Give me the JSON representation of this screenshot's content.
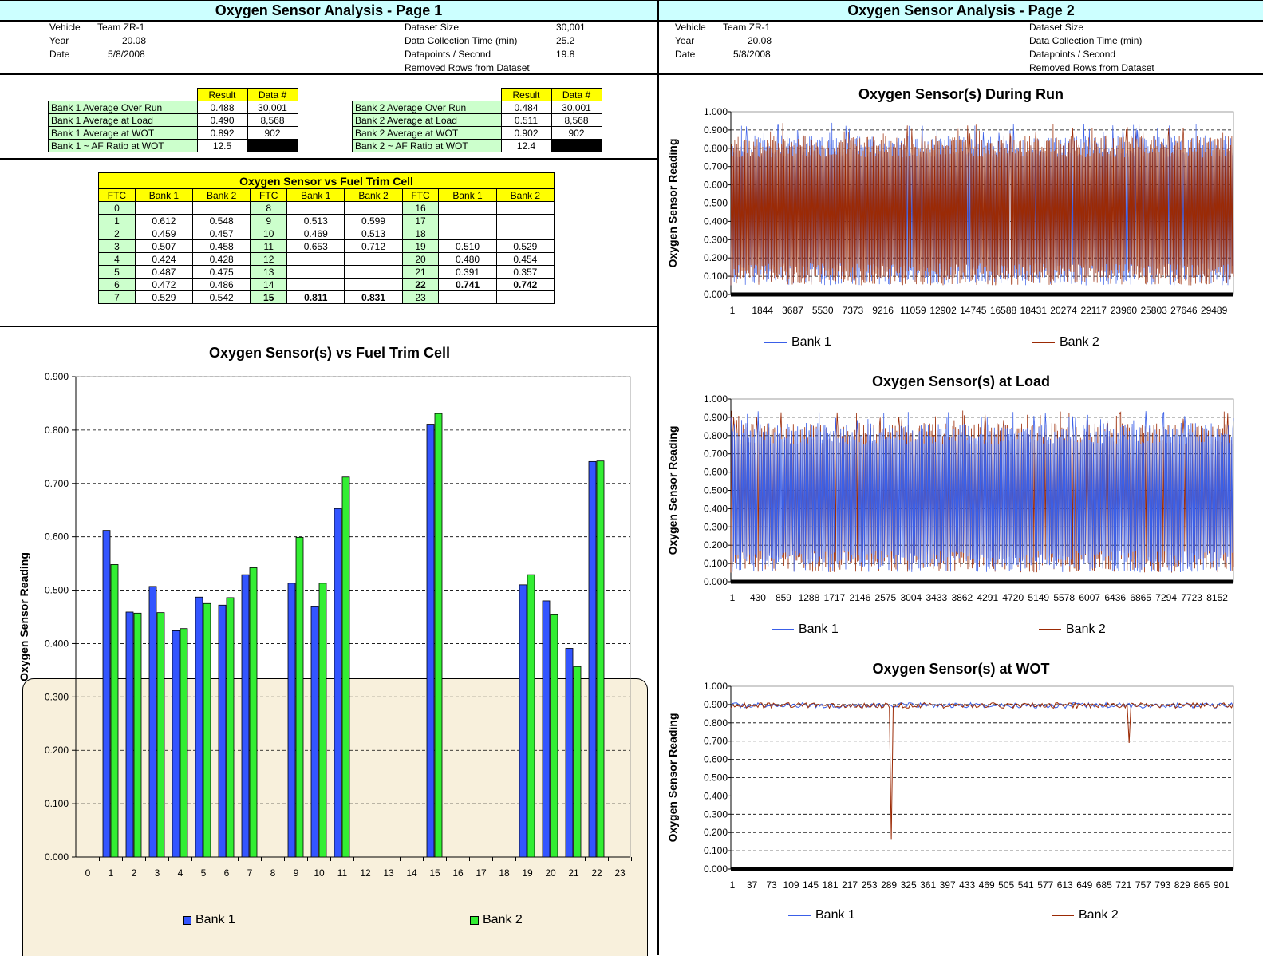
{
  "page1": {
    "title": "Oxygen Sensor Analysis - Page 1",
    "info_left": [
      {
        "label": "Vehicle",
        "value": "Team ZR-1"
      },
      {
        "label": "Year",
        "value": "20.08"
      },
      {
        "label": "Date",
        "value": "5/8/2008"
      }
    ],
    "info_right": [
      {
        "label": "Dataset Size",
        "value": "30,001"
      },
      {
        "label": "Data Collection Time (min)",
        "value": "25.2"
      },
      {
        "label": "Datapoints / Second",
        "value": "19.8"
      },
      {
        "label": "Removed Rows from Dataset",
        "value": ""
      }
    ],
    "summary_headers": [
      "Result",
      "Data #"
    ],
    "bank1_summary": [
      {
        "label": "Bank 1 Average Over Run",
        "result": "0.488",
        "data": "30,001"
      },
      {
        "label": "Bank 1 Average at Load",
        "result": "0.490",
        "data": "8,568"
      },
      {
        "label": "Bank 1 Average at WOT",
        "result": "0.892",
        "data": "902"
      },
      {
        "label": "Bank 1 ~ AF Ratio at WOT",
        "result": "12.5",
        "data": ""
      }
    ],
    "bank2_summary": [
      {
        "label": "Bank 2 Average Over Run",
        "result": "0.484",
        "data": "30,001"
      },
      {
        "label": "Bank 2 Average at Load",
        "result": "0.511",
        "data": "8,568"
      },
      {
        "label": "Bank 2 Average at WOT",
        "result": "0.902",
        "data": "902"
      },
      {
        "label": "Bank 2 ~ AF Ratio at WOT",
        "result": "12.4",
        "data": ""
      }
    ],
    "ftc_table": {
      "caption": "Oxygen Sensor vs Fuel Trim Cell",
      "headers": [
        "FTC",
        "Bank 1",
        "Bank 2",
        "FTC",
        "Bank 1",
        "Bank 2",
        "FTC",
        "Bank 1",
        "Bank 2"
      ],
      "rows": [
        [
          "0",
          "",
          "",
          "8",
          "",
          "",
          "16",
          "",
          ""
        ],
        [
          "1",
          "0.612",
          "0.548",
          "9",
          "0.513",
          "0.599",
          "17",
          "",
          ""
        ],
        [
          "2",
          "0.459",
          "0.457",
          "10",
          "0.469",
          "0.513",
          "18",
          "",
          ""
        ],
        [
          "3",
          "0.507",
          "0.458",
          "11",
          "0.653",
          "0.712",
          "19",
          "0.510",
          "0.529"
        ],
        [
          "4",
          "0.424",
          "0.428",
          "12",
          "",
          "",
          "20",
          "0.480",
          "0.454"
        ],
        [
          "5",
          "0.487",
          "0.475",
          "13",
          "",
          "",
          "21",
          "0.391",
          "0.357"
        ],
        [
          "6",
          "0.472",
          "0.486",
          "14",
          "",
          "",
          "22",
          "0.741",
          "0.742"
        ],
        [
          "7",
          "0.529",
          "0.542",
          "15",
          "0.811",
          "0.831",
          "23",
          "",
          ""
        ]
      ],
      "bold_cells": [
        [
          6,
          6
        ],
        [
          6,
          7
        ],
        [
          6,
          8
        ],
        [
          7,
          3
        ],
        [
          7,
          4
        ],
        [
          7,
          5
        ]
      ]
    }
  },
  "page2": {
    "title": "Oxygen Sensor Analysis - Page 2",
    "info_left": [
      {
        "label": "Vehicle",
        "value": "Team ZR-1"
      },
      {
        "label": "Year",
        "value": "20.08"
      },
      {
        "label": "Date",
        "value": "5/8/2008"
      }
    ],
    "info_right": [
      {
        "label": "Dataset Size",
        "value": ""
      },
      {
        "label": "Data Collection Time (min)",
        "value": ""
      },
      {
        "label": "Datapoints / Second",
        "value": ""
      },
      {
        "label": "Removed Rows from Dataset",
        "value": ""
      }
    ]
  },
  "colors": {
    "bank1_bar": "#3355ff",
    "bank2_bar": "#33ee33",
    "bank1_line": "#3a5fe8",
    "bank2_line": "#9b2a05",
    "header_cyan": "#ccffff",
    "label_green": "#ccffcc",
    "header_yellow": "#ffff00"
  },
  "chart_data": [
    {
      "type": "bar",
      "title": "Oxygen Sensor(s) vs Fuel Trim Cell",
      "xlabel": "",
      "ylabel": "Oxygen Sensor Reading",
      "categories": [
        "0",
        "1",
        "2",
        "3",
        "4",
        "5",
        "6",
        "7",
        "8",
        "9",
        "10",
        "11",
        "12",
        "13",
        "14",
        "15",
        "16",
        "17",
        "18",
        "19",
        "20",
        "21",
        "22",
        "23"
      ],
      "series": [
        {
          "name": "Bank 1",
          "values": [
            null,
            0.612,
            0.459,
            0.507,
            0.424,
            0.487,
            0.472,
            0.529,
            null,
            0.513,
            0.469,
            0.653,
            null,
            null,
            null,
            0.811,
            null,
            null,
            null,
            0.51,
            0.48,
            0.391,
            0.741,
            null
          ]
        },
        {
          "name": "Bank 2",
          "values": [
            null,
            0.548,
            0.457,
            0.458,
            0.428,
            0.475,
            0.486,
            0.542,
            null,
            0.599,
            0.513,
            0.712,
            null,
            null,
            null,
            0.831,
            null,
            null,
            null,
            0.529,
            0.454,
            0.357,
            0.742,
            null
          ]
        }
      ],
      "ylim": [
        0,
        0.9
      ],
      "yticks": [
        "0.000",
        "0.100",
        "0.200",
        "0.300",
        "0.400",
        "0.500",
        "0.600",
        "0.700",
        "0.800",
        "0.900"
      ],
      "grid": "horizontal dashed",
      "legend": "bottom"
    },
    {
      "type": "line",
      "title": "Oxygen Sensor(s) During Run",
      "ylabel": "Oxygen Sensor Reading",
      "xticks": [
        "1",
        "1844",
        "3687",
        "5530",
        "7373",
        "9216",
        "11059",
        "12902",
        "14745",
        "16588",
        "18431",
        "20274",
        "22117",
        "23960",
        "25803",
        "27646",
        "29489"
      ],
      "yticks": [
        "0.000",
        "0.100",
        "0.200",
        "0.300",
        "0.400",
        "0.500",
        "0.600",
        "0.700",
        "0.800",
        "0.900",
        "1.000"
      ],
      "ylim": [
        0,
        1
      ],
      "series": [
        {
          "name": "Bank 1"
        },
        {
          "name": "Bank 2"
        }
      ],
      "legend": "bottom"
    },
    {
      "type": "line",
      "title": "Oxygen Sensor(s) at Load",
      "ylabel": "Oxygen Sensor Reading",
      "xticks": [
        "1",
        "430",
        "859",
        "1288",
        "1717",
        "2146",
        "2575",
        "3004",
        "3433",
        "3862",
        "4291",
        "4720",
        "5149",
        "5578",
        "6007",
        "6436",
        "6865",
        "7294",
        "7723",
        "8152"
      ],
      "yticks": [
        "0.000",
        "0.100",
        "0.200",
        "0.300",
        "0.400",
        "0.500",
        "0.600",
        "0.700",
        "0.800",
        "0.900",
        "1.000"
      ],
      "ylim": [
        0,
        1
      ],
      "series": [
        {
          "name": "Bank 1"
        },
        {
          "name": "Bank 2"
        }
      ],
      "legend": "bottom"
    },
    {
      "type": "line",
      "title": "Oxygen Sensor(s) at WOT",
      "ylabel": "Oxygen Sensor Reading",
      "xticks": [
        "1",
        "37",
        "73",
        "109",
        "145",
        "181",
        "217",
        "253",
        "289",
        "325",
        "361",
        "397",
        "433",
        "469",
        "505",
        "541",
        "577",
        "613",
        "649",
        "685",
        "721",
        "757",
        "793",
        "829",
        "865",
        "901"
      ],
      "yticks": [
        "0.000",
        "0.100",
        "0.200",
        "0.300",
        "0.400",
        "0.500",
        "0.600",
        "0.700",
        "0.800",
        "0.900",
        "1.000"
      ],
      "ylim": [
        0,
        1
      ],
      "series": [
        {
          "name": "Bank 1"
        },
        {
          "name": "Bank 2"
        }
      ],
      "legend": "bottom"
    }
  ]
}
